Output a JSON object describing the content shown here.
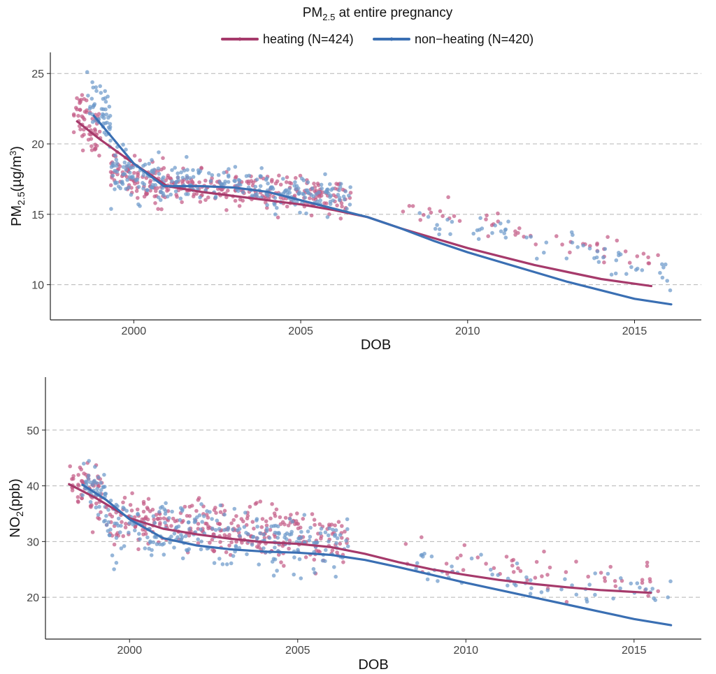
{
  "title": {
    "main": "PM",
    "sub": "2.5",
    "rest": " at entire pregnancy"
  },
  "legend": [
    {
      "label": "heating (N=424)",
      "color": "#A63A6B"
    },
    {
      "label": "non−heating (N=420)",
      "color": "#3A6FB3"
    }
  ],
  "colors": {
    "heating": "#A63A6B",
    "nonheating": "#3A6FB3",
    "heating_points": "#C45C86",
    "nonheating_points": "#6E9ACB"
  },
  "chart_data": [
    {
      "type": "scatter",
      "name": "pm25",
      "title": "PM2.5 at entire pregnancy",
      "xlabel": "DOB",
      "ylabel": {
        "main": "PM",
        "sub": "2.5",
        "unit_open": "(µg/m",
        "sup": "3",
        "unit_close": ")"
      },
      "xlim": [
        1997.5,
        2017.0
      ],
      "ylim": [
        7.5,
        26.5
      ],
      "xticks": [
        2000,
        2005,
        2010,
        2015
      ],
      "yticks": [
        10,
        15,
        20,
        25
      ],
      "grid": "horizontal dashed",
      "smooth": [
        {
          "name": "heating (N=424)",
          "x": [
            1998.3,
            1999.0,
            2000.0,
            2001.0,
            2002.0,
            2003.0,
            2004.0,
            2005.0,
            2006.0,
            2007.0,
            2008.0,
            2009.0,
            2010.0,
            2011.0,
            2012.0,
            2013.0,
            2014.0,
            2015.5
          ],
          "y": [
            21.6,
            20.3,
            18.6,
            17.0,
            16.6,
            16.3,
            16.0,
            15.7,
            15.3,
            14.8,
            14.0,
            13.3,
            12.6,
            12.0,
            11.4,
            10.9,
            10.4,
            9.9
          ]
        },
        {
          "name": "non−heating (N=420)",
          "x": [
            1998.8,
            1999.3,
            2000.0,
            2000.9,
            2002.0,
            2003.0,
            2004.0,
            2005.0,
            2006.0,
            2007.0,
            2008.0,
            2009.0,
            2010.0,
            2011.0,
            2012.0,
            2013.0,
            2014.0,
            2015.0,
            2016.1
          ],
          "y": [
            22.0,
            20.6,
            18.6,
            17.0,
            17.0,
            16.9,
            16.6,
            16.0,
            15.4,
            14.8,
            14.0,
            13.1,
            12.3,
            11.6,
            10.9,
            10.2,
            9.6,
            9.0,
            8.6
          ]
        }
      ],
      "clusters": [
        {
          "series": "heating",
          "x": [
            1998.2,
            1999.0
          ],
          "center": 21.6,
          "slope": -2.0,
          "spread": 1.6,
          "n": 60
        },
        {
          "series": "nonheating",
          "x": [
            1998.6,
            1999.3
          ],
          "center": 22.5,
          "slope": -2.0,
          "spread": 1.5,
          "n": 50
        },
        {
          "series": "heating",
          "x": [
            1999.3,
            2001.0
          ],
          "center": 17.5,
          "slope": -0.8,
          "spread": 1.2,
          "n": 100
        },
        {
          "series": "nonheating",
          "x": [
            1999.3,
            2001.0
          ],
          "center": 17.6,
          "slope": -0.6,
          "spread": 1.3,
          "n": 90
        },
        {
          "series": "heating",
          "x": [
            2001.0,
            2006.5
          ],
          "center": 16.6,
          "slope": -0.15,
          "spread": 1.0,
          "n": 220
        },
        {
          "series": "nonheating",
          "x": [
            2001.0,
            2006.5
          ],
          "center": 16.8,
          "slope": -0.2,
          "spread": 1.0,
          "n": 190
        },
        {
          "series": "heating",
          "x": [
            2008.0,
            2015.8
          ],
          "center": 13.6,
          "slope": -0.52,
          "spread": 0.7,
          "n": 50
        },
        {
          "series": "nonheating",
          "x": [
            2008.5,
            2016.1
          ],
          "center": 12.8,
          "slope": -0.55,
          "spread": 0.9,
          "n": 60
        }
      ]
    },
    {
      "type": "scatter",
      "name": "no2",
      "xlabel": "DOB",
      "ylabel": {
        "main": "NO",
        "sub": "2",
        "unit_open": "(ppb)",
        "sup": "",
        "unit_close": ""
      },
      "xlim": [
        1997.5,
        2017.0
      ],
      "ylim": [
        12.5,
        59.5
      ],
      "xticks": [
        2000,
        2005,
        2010,
        2015
      ],
      "yticks": [
        20,
        30,
        40,
        50
      ],
      "grid": "horizontal dashed",
      "smooth": [
        {
          "name": "heating (N=424)",
          "x": [
            1998.2,
            1999.0,
            2000.0,
            2001.0,
            2002.0,
            2003.0,
            2004.0,
            2005.0,
            2006.0,
            2007.0,
            2008.0,
            2009.0,
            2010.0,
            2011.0,
            2012.0,
            2013.0,
            2014.0,
            2015.5
          ],
          "y": [
            40.3,
            37.8,
            34.2,
            32.3,
            31.3,
            30.5,
            29.9,
            29.6,
            29.0,
            27.8,
            26.3,
            25.0,
            24.0,
            23.1,
            22.4,
            21.8,
            21.3,
            20.8
          ]
        },
        {
          "name": "non−heating (N=420)",
          "x": [
            1998.6,
            1999.3,
            2000.0,
            2001.0,
            2002.0,
            2003.0,
            2004.0,
            2005.0,
            2006.0,
            2007.0,
            2008.0,
            2009.0,
            2010.0,
            2011.0,
            2012.0,
            2013.0,
            2014.0,
            2015.0,
            2016.1
          ],
          "y": [
            40.2,
            37.5,
            34.0,
            30.6,
            29.3,
            28.6,
            28.2,
            28.0,
            27.6,
            26.7,
            25.4,
            24.0,
            22.6,
            21.3,
            20.0,
            18.7,
            17.4,
            16.1,
            15.0
          ]
        }
      ],
      "clusters": [
        {
          "series": "heating",
          "x": [
            1998.2,
            1999.2
          ],
          "center": 40.0,
          "slope": -3.0,
          "spread": 4.5,
          "n": 60
        },
        {
          "series": "nonheating",
          "x": [
            1998.6,
            1999.3
          ],
          "center": 39.5,
          "slope": -3.0,
          "spread": 4.0,
          "n": 45
        },
        {
          "series": "heating",
          "x": [
            1999.3,
            2006.5
          ],
          "center": 32.0,
          "slope": -0.55,
          "spread": 4.0,
          "n": 300
        },
        {
          "series": "nonheating",
          "x": [
            1999.3,
            2006.5
          ],
          "center": 31.0,
          "slope": -0.6,
          "spread": 4.0,
          "n": 260
        },
        {
          "series": "heating",
          "x": [
            2008.0,
            2015.8
          ],
          "center": 25.0,
          "slope": -0.5,
          "spread": 3.0,
          "n": 50
        },
        {
          "series": "nonheating",
          "x": [
            2008.5,
            2016.1
          ],
          "center": 22.5,
          "slope": -0.85,
          "spread": 3.0,
          "n": 60
        }
      ]
    }
  ]
}
